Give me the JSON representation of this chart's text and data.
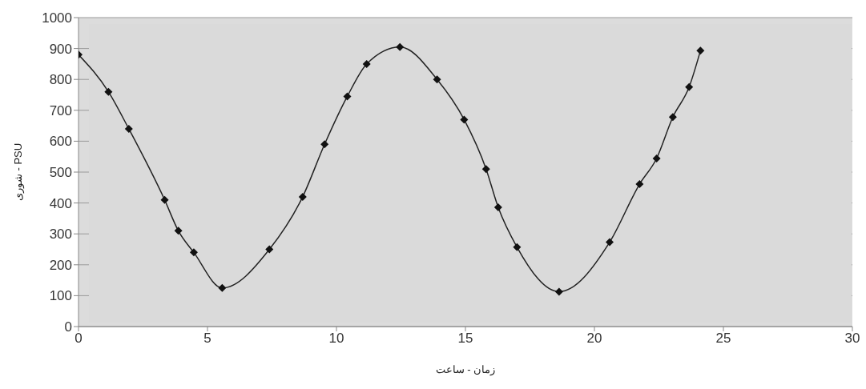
{
  "chart_data": {
    "type": "line",
    "xlabel": "زمان - ساعت",
    "ylabel": "شوری - PSU",
    "x": [
      0,
      1.16,
      1.95,
      3.34,
      3.87,
      4.47,
      5.57,
      7.4,
      8.69,
      9.54,
      10.42,
      11.17,
      12.46,
      13.9,
      14.95,
      15.8,
      16.27,
      17.0,
      18.63,
      20.59,
      21.75,
      22.41,
      23.04,
      23.67,
      24.11
    ],
    "series": [
      {
        "color": "#222222",
        "values": [
          880,
          760,
          640,
          410,
          310,
          240,
          125,
          250,
          420,
          590,
          745,
          850,
          905,
          800,
          670,
          510,
          386,
          257,
          113,
          273,
          461,
          544,
          678,
          775,
          893
        ]
      }
    ],
    "xlim": [
      0,
      30
    ],
    "xticks": [
      0,
      5,
      10,
      15,
      20,
      25,
      30
    ],
    "ylim": [
      0,
      1000
    ],
    "yticks": [
      0,
      100,
      200,
      300,
      400,
      500,
      600,
      700,
      800,
      900,
      1000
    ],
    "grid": "y",
    "marker": "diamond",
    "line_style": "solid"
  }
}
